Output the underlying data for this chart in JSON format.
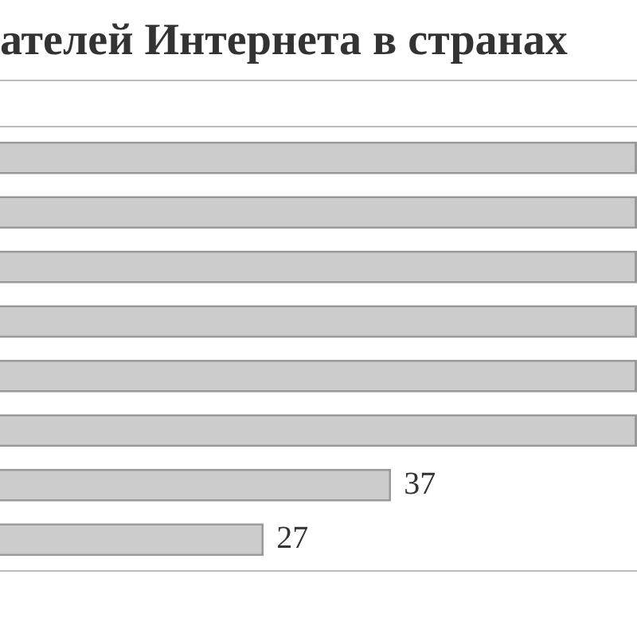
{
  "chart_data": {
    "type": "bar",
    "orientation": "horizontal",
    "title": "ателей Интернета в странах",
    "categories": [
      null,
      null,
      null,
      null,
      null,
      null,
      null,
      null
    ],
    "values": [
      56.3,
      56.3,
      56.3,
      56.3,
      56.3,
      56.3,
      37,
      27
    ],
    "value_labels": [
      null,
      null,
      null,
      null,
      null,
      null,
      "37",
      "27"
    ],
    "color": "#cccccc",
    "xlim": [
      6.3,
      56.3
    ],
    "tick_labels": false,
    "grid": false,
    "legend": false
  }
}
